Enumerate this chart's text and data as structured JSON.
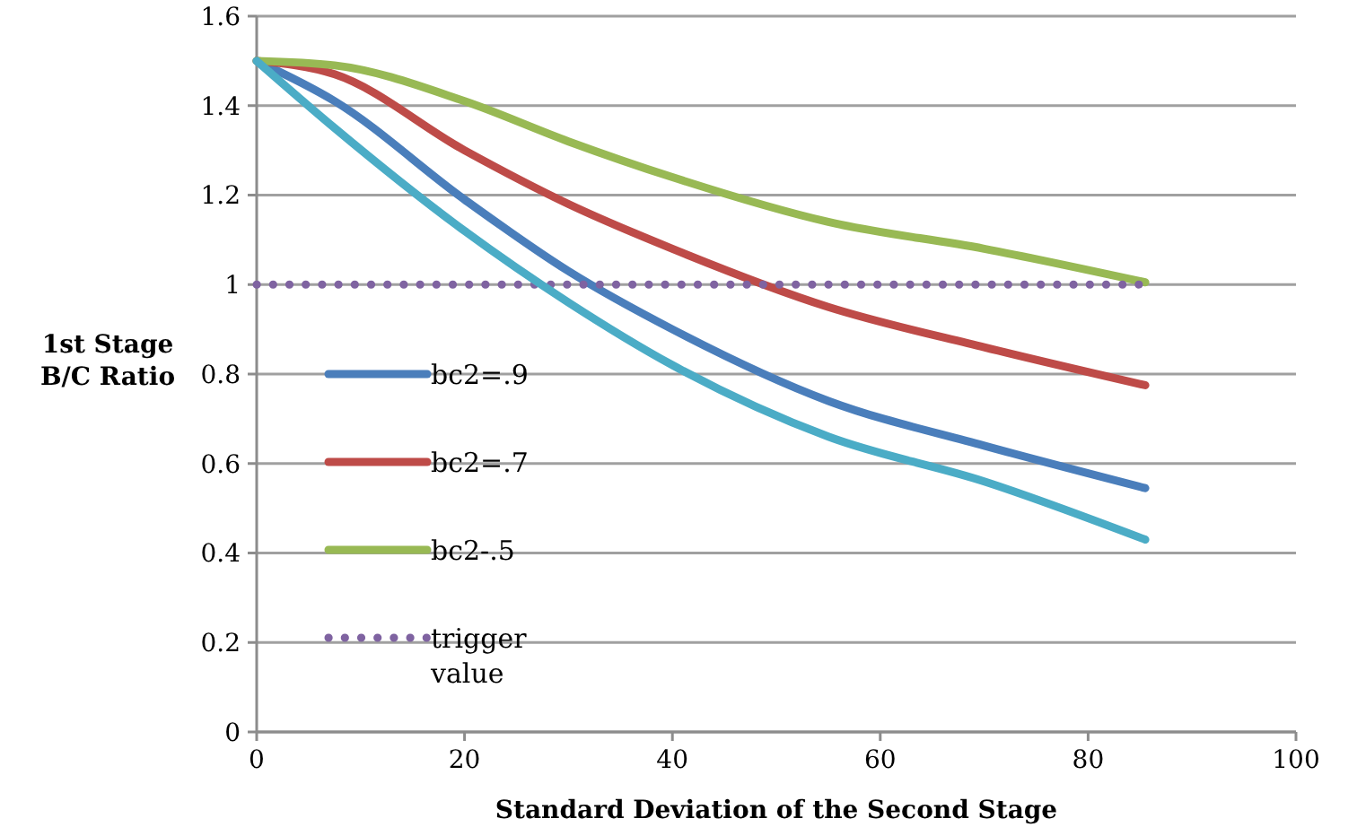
{
  "chart_data": {
    "type": "line",
    "xlabel": "Standard Deviation of the Second Stage",
    "ylabel": "1st Stage B/C Ratio",
    "x": [
      0,
      7.5,
      20,
      30,
      40,
      55,
      70,
      85.5
    ],
    "xlim": [
      0,
      100
    ],
    "xticks": [
      0,
      20,
      40,
      60,
      80,
      100
    ],
    "ylim": [
      0,
      1.6
    ],
    "yticks": [
      0,
      0.2,
      0.4,
      0.6,
      0.8,
      1,
      1.2,
      1.4,
      1.6
    ],
    "grid": "y",
    "legend": "left",
    "marker": "none",
    "series": [
      {
        "name": "bc2=.9",
        "color": "#4a7ebb",
        "values": [
          1.5,
          1.41,
          1.19,
          1.03,
          0.9,
          0.74,
          0.64,
          0.545
        ]
      },
      {
        "name": "bc2=.7",
        "color": "#be4b48",
        "values": [
          1.5,
          1.47,
          1.3,
          1.18,
          1.08,
          0.95,
          0.86,
          0.775
        ]
      },
      {
        "name": "bc2-.5",
        "color": "#98b954",
        "values": [
          1.5,
          1.49,
          1.41,
          1.32,
          1.24,
          1.14,
          1.08,
          1.005
        ]
      },
      {
        "name": "trigger value",
        "color": "#7f63a1",
        "line_style": "dotted",
        "x": [
          0,
          85.5
        ],
        "values": [
          1,
          1
        ]
      },
      {
        "color": "#4bacc6",
        "values": [
          1.5,
          1.35,
          1.12,
          0.96,
          0.82,
          0.66,
          0.56,
          0.43
        ]
      }
    ]
  }
}
